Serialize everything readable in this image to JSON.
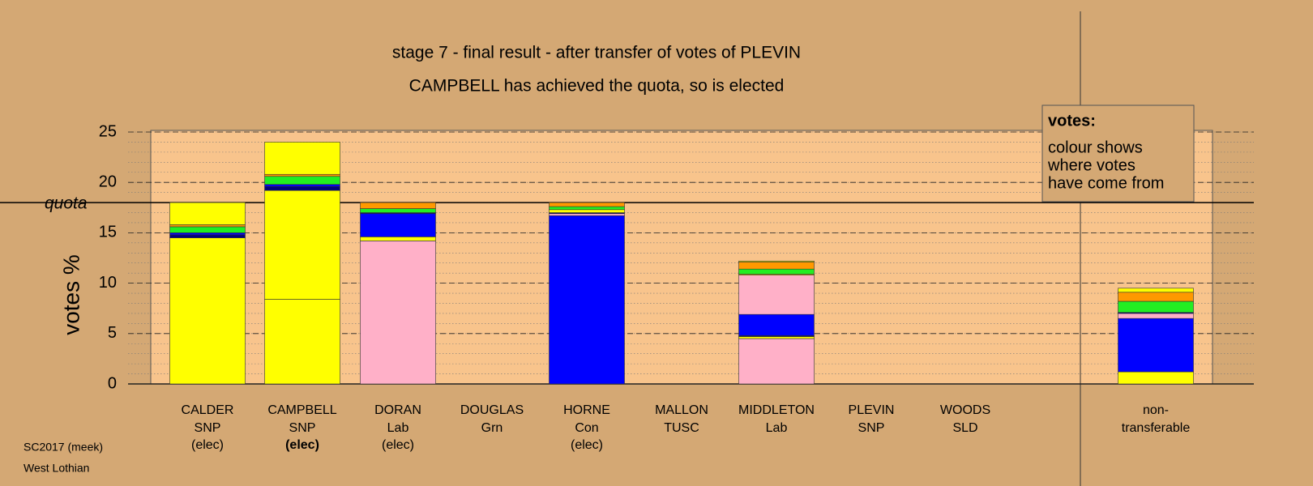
{
  "chart_data": {
    "type": "stacked-bar",
    "title": "stage 7 - final result - after transfer of votes of PLEVIN",
    "subtitle": "CAMPBELL has achieved the quota, so is elected",
    "ylabel": "votes %",
    "ylim": [
      0,
      25
    ],
    "yticks": [
      0,
      5,
      10,
      15,
      20,
      25
    ],
    "minor_grid_step": 1,
    "quota": 18,
    "quota_label": "quota",
    "categories": [
      "CALDER",
      "CAMPBELL",
      "DORAN",
      "DOUGLAS",
      "HORNE",
      "MALLON",
      "MIDDLETON",
      "PLEVIN",
      "WOODS",
      "non-"
    ],
    "parties": [
      "SNP",
      "SNP",
      "Lab",
      "Grn",
      "Con",
      "TUSC",
      "Lab",
      "SNP",
      "SLD",
      "transferable"
    ],
    "status": [
      "(elec)",
      "(elec)",
      "(elec)",
      null,
      "(elec)",
      null,
      null,
      null,
      null,
      null
    ],
    "stacks": [
      [
        {
          "color": "#ffff00",
          "value": 14.5
        },
        {
          "color": "#000080",
          "value": 0.3
        },
        {
          "color": "#0000ff",
          "value": 0.2
        },
        {
          "color": "#22ee22",
          "value": 0.6
        },
        {
          "color": "#ff9900",
          "value": 0.2
        },
        {
          "color": "#ffff00",
          "value": 2.2
        }
      ],
      [
        {
          "color": "#ffff00",
          "value": 8.4
        },
        {
          "color": "#ffff00",
          "value": 10.8
        },
        {
          "color": "#000080",
          "value": 0.4
        },
        {
          "color": "#0000ff",
          "value": 0.2
        },
        {
          "color": "#22ee22",
          "value": 0.8
        },
        {
          "color": "#ff9900",
          "value": 0.2
        },
        {
          "color": "#ffff00",
          "value": 3.2
        }
      ],
      [
        {
          "color": "#ffb0c8",
          "value": 14.2
        },
        {
          "color": "#ffff00",
          "value": 0.4
        },
        {
          "color": "#0000ff",
          "value": 2.3
        },
        {
          "color": "#000080",
          "value": 0.1
        },
        {
          "color": "#22ee22",
          "value": 0.4
        },
        {
          "color": "#ff9900",
          "value": 0.6
        }
      ],
      [],
      [
        {
          "color": "#0000ff",
          "value": 16.7
        },
        {
          "color": "#ffb0c8",
          "value": 0.2
        },
        {
          "color": "#000080",
          "value": 0.1
        },
        {
          "color": "#ffff00",
          "value": 0.3
        },
        {
          "color": "#22ee22",
          "value": 0.3
        },
        {
          "color": "#ff9900",
          "value": 0.4
        }
      ],
      [],
      [
        {
          "color": "#ffb0c8",
          "value": 4.5
        },
        {
          "color": "#ffff00",
          "value": 0.2
        },
        {
          "color": "#000080",
          "value": 0.1
        },
        {
          "color": "#0000ff",
          "value": 2.1
        },
        {
          "color": "#ffb0c8",
          "value": 3.9
        },
        {
          "color": "#ffff00",
          "value": 0.1
        },
        {
          "color": "#22ee22",
          "value": 0.5
        },
        {
          "color": "#ff9900",
          "value": 0.7
        },
        {
          "color": "#ffff00",
          "value": 0.1
        }
      ],
      [],
      [],
      [
        {
          "color": "#ffff00",
          "value": 1.2
        },
        {
          "color": "#0000ff",
          "value": 5.3
        },
        {
          "color": "#ffb0c8",
          "value": 0.5
        },
        {
          "color": "#000080",
          "value": 0.1
        },
        {
          "color": "#22ee22",
          "value": 1.1
        },
        {
          "color": "#ff9900",
          "value": 0.9
        },
        {
          "color": "#ffff00",
          "value": 0.4
        }
      ]
    ],
    "legend_title": "votes:",
    "legend_lines": [
      "colour shows",
      "where votes",
      "have come from"
    ],
    "footer": [
      "SC2017 (meek)",
      "West Lothian"
    ]
  }
}
